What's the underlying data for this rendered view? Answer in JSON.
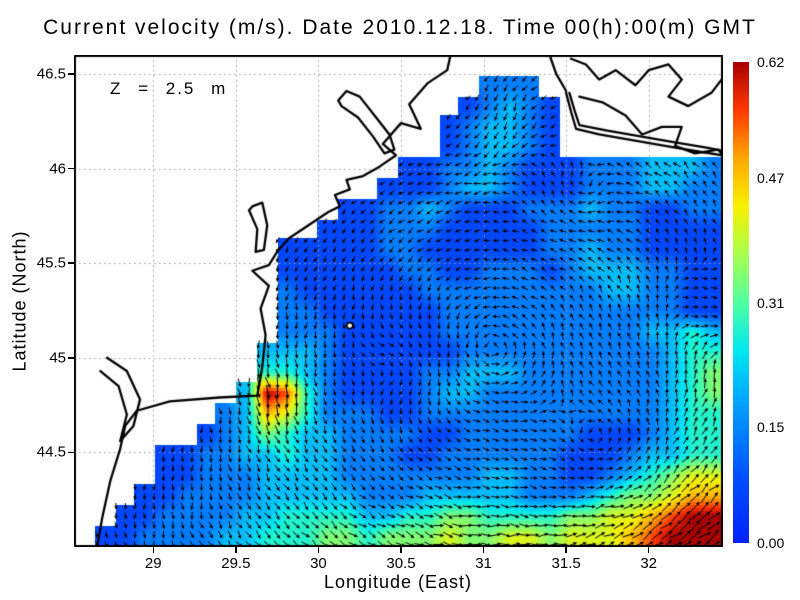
{
  "chart_data": {
    "type": "heatmap",
    "subtype": "ocean-current-vector-field-map",
    "title": "Current velocity (m/s). Date 2010.12.18. Time 00(h):00(m) GMT",
    "annotation": "Z = 2.5 m",
    "xlabel": "Longitude (East)",
    "ylabel": "Latitude (North)",
    "units": "m/s",
    "xlim": [
      28.52,
      32.45
    ],
    "ylim": [
      44.0,
      46.6
    ],
    "xticks": [
      "29",
      "29.5",
      "30",
      "30.5",
      "31",
      "31.5",
      "32"
    ],
    "yticks": [
      "44.5",
      "45",
      "45.5",
      "46",
      "46.5"
    ],
    "grid": true,
    "legend_position": "right-colorbar",
    "colorbar": {
      "min": 0,
      "max": 0.62,
      "tick_labels": [
        "0.00",
        "0.15",
        "0.31",
        "0.47",
        "0.62"
      ]
    },
    "colormap_stops": [
      [
        0.0,
        "#0022ff"
      ],
      [
        0.14,
        "#0050ff"
      ],
      [
        0.3,
        "#00a8ff"
      ],
      [
        0.4,
        "#00e8f0"
      ],
      [
        0.5,
        "#50ffa0"
      ],
      [
        0.6,
        "#a8ff50"
      ],
      [
        0.7,
        "#f8f000"
      ],
      [
        0.8,
        "#ffa800"
      ],
      [
        0.9,
        "#ff3800"
      ],
      [
        1.0,
        "#a80000"
      ]
    ],
    "magnitude_grid": {
      "nx": 32,
      "ny": 24,
      "encoding": "char digit d => speed = d/9*0.62 m/s; '.' = land/no data; row 0 = north (lat 46.6), col 0 = west (lon 28.52)",
      "rows": [
        "................................",
        "....................222.........",
        "...................12321........",
        "..................123321........",
        "..................123321........",
        "................1122321112223332",
        "...............11123321112223322",
        ".............1122321112223221122",
        "............11122211111222221111",
        "..........1111122111111223221111",
        "..........1111112211222123332211",
        "..........2111111222222222332211",
        "..........2211111122222222222211",
        "..........2221111122222222223343",
        ".........33321111112222222222344",
        ".........44321111223332222222345",
        "........398421111233222222222345",
        ".......2376422211222222222222344",
        "......12354332222112222221112344",
        "....1122334332221122222211123344",
        "....1122233332222222332211234566",
        "...11222233333222333332223455677",
        "..112222334444334455444455667899",
        ".1122223344455455565566566678999"
      ]
    },
    "flow_features": [
      {
        "kind": "gyre",
        "center_lonlat": [
          31.05,
          45.05
        ],
        "sense": "ccw",
        "strength": 1.0
      },
      {
        "kind": "eddy",
        "center_lonlat": [
          31.78,
          44.52
        ],
        "sense": "ccw",
        "radius_px": 85,
        "strength": 1.6
      },
      {
        "kind": "eddy",
        "center_lonlat": [
          30.55,
          44.95
        ],
        "sense": "cw",
        "radius_px": 65,
        "strength": 1.0
      },
      {
        "kind": "eddy",
        "center_lonlat": [
          31.55,
          45.85
        ],
        "sense": "cw",
        "radius_px": 55,
        "strength": 1.0
      },
      {
        "kind": "jet",
        "center_lonlat": [
          29.7,
          44.8
        ],
        "dir_xy": [
          0.15,
          1
        ],
        "radius_px": 30,
        "strength": 3.5
      },
      {
        "kind": "jet",
        "center_lonlat": [
          31.1,
          46.3
        ],
        "dir_xy": [
          0,
          1
        ],
        "radius_px": 50,
        "strength": 1.5
      },
      {
        "kind": "jet",
        "center_lonlat": [
          32.35,
          44.25
        ],
        "dir_xy": [
          0.85,
          -0.53
        ],
        "radius_px": 80,
        "strength": 1.8
      },
      {
        "kind": "jet",
        "center_lonlat": [
          28.95,
          44.45
        ],
        "dir_xy": [
          -0.3,
          1
        ],
        "radius_px": 60,
        "strength": 1.5
      },
      {
        "kind": "jet",
        "center_lonlat": [
          32.4,
          45.3
        ],
        "dir_xy": [
          0.6,
          0.8
        ],
        "radius_px": 60,
        "strength": 1.2
      }
    ],
    "coastlines": [
      [
        [
          28.66,
          44.0
        ],
        [
          28.69,
          44.15
        ],
        [
          28.74,
          44.35
        ],
        [
          28.8,
          44.52
        ],
        [
          28.83,
          44.64
        ],
        [
          28.9,
          44.72
        ],
        [
          29.1,
          44.77
        ],
        [
          29.4,
          44.79
        ],
        [
          29.63,
          44.8
        ],
        [
          29.66,
          44.95
        ],
        [
          29.68,
          45.12
        ],
        [
          29.65,
          45.26
        ],
        [
          29.7,
          45.38
        ],
        [
          29.6,
          45.46
        ],
        [
          29.7,
          45.49
        ],
        [
          29.75,
          45.56
        ],
        [
          29.82,
          45.63
        ],
        [
          29.94,
          45.7
        ],
        [
          30.06,
          45.77
        ],
        [
          30.13,
          45.8
        ],
        [
          30.1,
          45.86
        ],
        [
          30.19,
          45.89
        ],
        [
          30.17,
          45.94
        ],
        [
          30.27,
          45.96
        ],
        [
          30.37,
          46.01
        ],
        [
          30.47,
          46.07
        ],
        [
          30.39,
          46.13
        ],
        [
          30.5,
          46.24
        ],
        [
          30.62,
          46.21
        ],
        [
          30.55,
          46.34
        ],
        [
          30.66,
          46.45
        ],
        [
          30.78,
          46.52
        ],
        [
          30.8,
          46.6
        ]
      ],
      [
        [
          28.72,
          45.0
        ],
        [
          28.84,
          44.93
        ],
        [
          28.92,
          44.78
        ],
        [
          28.88,
          44.64
        ],
        [
          28.8,
          44.56
        ],
        [
          28.84,
          44.7
        ],
        [
          28.79,
          44.85
        ],
        [
          28.68,
          44.93
        ]
      ],
      [
        [
          29.6,
          45.8
        ],
        [
          29.66,
          45.82
        ],
        [
          29.69,
          45.7
        ],
        [
          29.67,
          45.57
        ],
        [
          29.62,
          45.56
        ],
        [
          29.63,
          45.68
        ],
        [
          29.58,
          45.78
        ],
        [
          29.6,
          45.8
        ]
      ],
      [
        [
          30.12,
          46.36
        ],
        [
          30.17,
          46.41
        ],
        [
          30.25,
          46.38
        ],
        [
          30.34,
          46.28
        ],
        [
          30.43,
          46.18
        ],
        [
          30.46,
          46.1
        ],
        [
          30.4,
          46.08
        ],
        [
          30.33,
          46.17
        ],
        [
          30.24,
          46.27
        ],
        [
          30.14,
          46.33
        ],
        [
          30.12,
          46.36
        ]
      ],
      [
        [
          31.53,
          46.58
        ],
        [
          31.62,
          46.55
        ],
        [
          31.7,
          46.47
        ],
        [
          31.8,
          46.52
        ],
        [
          31.92,
          46.44
        ],
        [
          32.0,
          46.52
        ],
        [
          32.12,
          46.55
        ],
        [
          32.2,
          46.47
        ],
        [
          32.12,
          46.38
        ],
        [
          32.24,
          46.33
        ],
        [
          32.38,
          46.4
        ],
        [
          32.45,
          46.48
        ],
        [
          32.5,
          46.45
        ]
      ],
      [
        [
          31.58,
          46.38
        ],
        [
          31.72,
          46.35
        ],
        [
          31.86,
          46.28
        ],
        [
          31.96,
          46.18
        ],
        [
          32.08,
          46.22
        ],
        [
          32.2,
          46.22
        ],
        [
          32.16,
          46.12
        ],
        [
          32.28,
          46.08
        ],
        [
          32.42,
          46.1
        ],
        [
          32.5,
          46.02
        ]
      ],
      [
        [
          31.5,
          46.4
        ],
        [
          31.53,
          46.3
        ],
        [
          31.56,
          46.21
        ],
        [
          31.7,
          46.18
        ],
        [
          31.9,
          46.15
        ],
        [
          32.1,
          46.12
        ],
        [
          32.3,
          46.09
        ],
        [
          32.45,
          46.07
        ]
      ],
      [
        [
          31.52,
          46.4
        ],
        [
          31.55,
          46.31
        ],
        [
          31.58,
          46.23
        ],
        [
          31.75,
          46.2
        ],
        [
          31.95,
          46.17
        ],
        [
          32.15,
          46.14
        ],
        [
          32.35,
          46.11
        ],
        [
          32.47,
          46.09
        ]
      ],
      [
        [
          31.4,
          46.6
        ],
        [
          31.44,
          46.5
        ],
        [
          31.5,
          46.41
        ]
      ]
    ],
    "islands": [
      {
        "lonlat": [
          30.19,
          45.17
        ],
        "radius_px": 3
      }
    ]
  }
}
